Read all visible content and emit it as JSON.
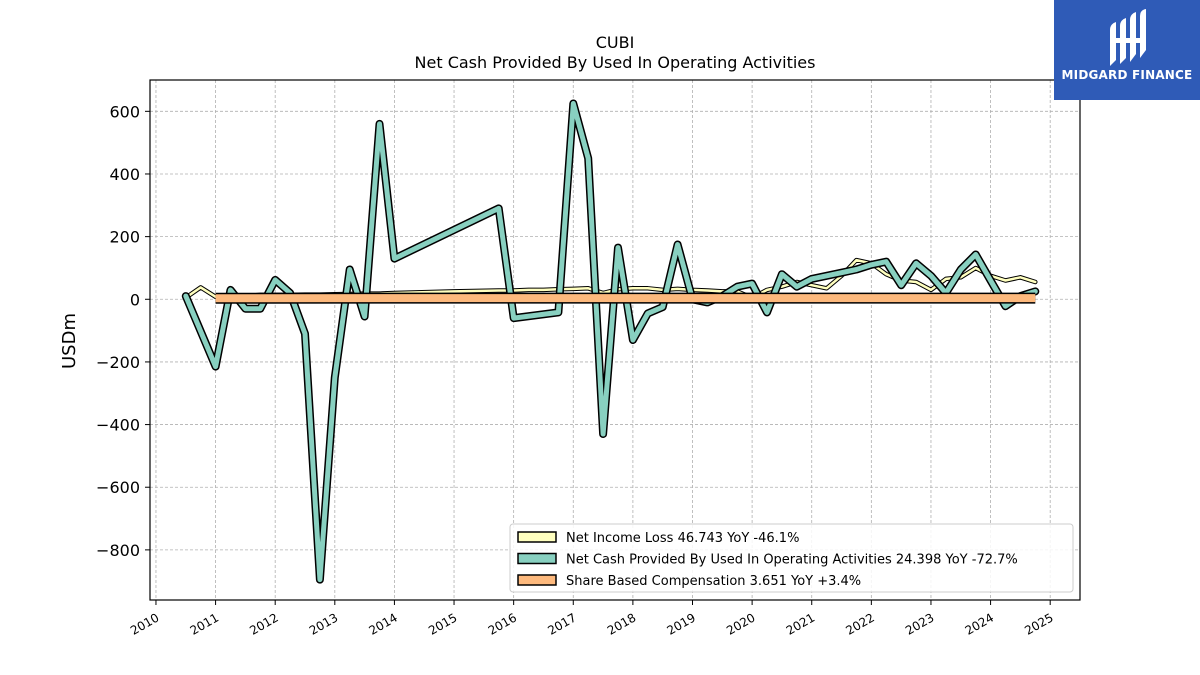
{
  "chart_data": {
    "type": "line",
    "title": "CUBI",
    "subtitle": "Net Cash Provided By Used In Operating Activities",
    "ylabel": "USDm",
    "xlabel": "",
    "ylim": [
      -960,
      700
    ],
    "xlim": [
      2009.9,
      2025.5
    ],
    "grid": true,
    "legend_position": "lower-right",
    "yticks": [
      600,
      400,
      200,
      0,
      -200,
      -400,
      -600,
      -800
    ],
    "ytick_labels": [
      "600",
      "400",
      "200",
      "0",
      "−200",
      "−400",
      "−600",
      "−800"
    ],
    "xticks": [
      2010,
      2011,
      2012,
      2013,
      2014,
      2015,
      2016,
      2017,
      2018,
      2019,
      2020,
      2021,
      2022,
      2023,
      2024,
      2025
    ],
    "xtick_labels": [
      "2010",
      "2011",
      "2012",
      "2013",
      "2014",
      "2015",
      "2016",
      "2017",
      "2018",
      "2019",
      "2020",
      "2021",
      "2022",
      "2023",
      "2024",
      "2025"
    ],
    "series": [
      {
        "name": "Net Income Loss",
        "legend_label": "Net Income Loss  46.743 YoY -46.1%",
        "color": "#ffffbf",
        "x": [
          2010.5,
          2010.75,
          2011.0,
          2011.25,
          2011.5,
          2011.75,
          2012.0,
          2012.25,
          2012.5,
          2012.75,
          2013.0,
          2013.25,
          2013.5,
          2013.75,
          2014.0,
          2015.0,
          2015.75,
          2016.0,
          2016.25,
          2016.5,
          2016.75,
          2017.0,
          2017.25,
          2017.5,
          2017.75,
          2018.0,
          2018.25,
          2018.5,
          2018.75,
          2019.0,
          2019.25,
          2019.5,
          2019.75,
          2020.0,
          2020.25,
          2020.5,
          2020.75,
          2021.0,
          2021.25,
          2021.5,
          2021.75,
          2022.0,
          2022.25,
          2022.5,
          2022.75,
          2023.0,
          2023.25,
          2023.5,
          2023.75,
          2024.0,
          2024.25,
          2024.5,
          2024.75
        ],
        "values": [
          5,
          38,
          8,
          12,
          10,
          14,
          14,
          14,
          15,
          15,
          16,
          17,
          18,
          18,
          20,
          25,
          28,
          28,
          30,
          30,
          32,
          33,
          35,
          20,
          32,
          35,
          35,
          30,
          33,
          30,
          28,
          25,
          25,
          5,
          30,
          40,
          55,
          45,
          35,
          75,
          125,
          115,
          80,
          60,
          55,
          30,
          65,
          70,
          100,
          75,
          60,
          70,
          55
        ]
      },
      {
        "name": "Net Cash Provided By Used In Operating Activities",
        "legend_label": "Net Cash Provided By Used In Operating Activities  24.398 YoY -72.7%",
        "color": "#88d0c0",
        "x": [
          2010.5,
          2011.0,
          2011.25,
          2011.5,
          2011.75,
          2012.0,
          2012.25,
          2012.5,
          2012.75,
          2013.0,
          2013.25,
          2013.5,
          2013.75,
          2014.0,
          2015.75,
          2016.0,
          2016.75,
          2017.0,
          2017.25,
          2017.5,
          2017.75,
          2018.0,
          2018.25,
          2018.5,
          2018.75,
          2019.0,
          2019.25,
          2019.5,
          2019.75,
          2020.0,
          2020.25,
          2020.5,
          2020.75,
          2021.0,
          2021.25,
          2021.5,
          2021.75,
          2022.0,
          2022.25,
          2022.5,
          2022.75,
          2023.0,
          2023.25,
          2023.5,
          2023.75,
          2024.0,
          2024.25,
          2024.5,
          2024.75
        ],
        "values": [
          10,
          -215,
          30,
          -30,
          -30,
          62,
          20,
          -110,
          -895,
          -250,
          95,
          -55,
          560,
          130,
          290,
          -60,
          -42,
          625,
          450,
          -430,
          165,
          -130,
          -45,
          -25,
          175,
          0,
          -10,
          10,
          40,
          50,
          -42,
          80,
          40,
          65,
          75,
          85,
          95,
          110,
          120,
          45,
          115,
          75,
          20,
          95,
          143,
          60,
          -22,
          10,
          25
        ]
      },
      {
        "name": "Share Based Compensation",
        "legend_label": "Share Based Compensation  3.651 YoY +3.4%",
        "color": "#fdb97d",
        "x": [
          2011.0,
          2024.75
        ],
        "values": [
          3.5,
          3.7
        ]
      }
    ]
  },
  "logo": {
    "text": "MIDGARD FINANCE",
    "color": "#2f5bb7"
  }
}
